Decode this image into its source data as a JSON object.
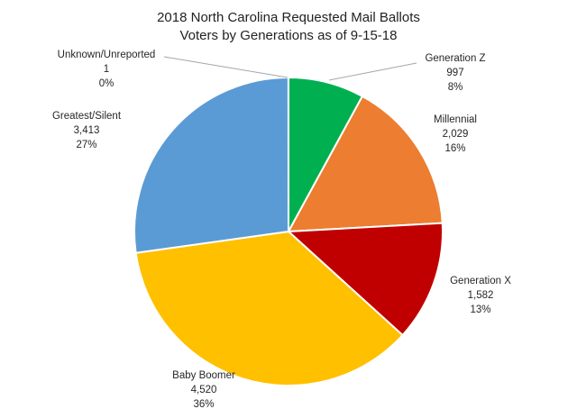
{
  "chart_data": {
    "type": "pie",
    "title": "2018 North Carolina Requested Mail Ballots",
    "subtitle": "Voters by Generations as of 9-15-18",
    "start_angle_deg": 0,
    "direction": "clockwise",
    "slices": [
      {
        "name": "Generation Z",
        "value": 997,
        "value_text": "997",
        "percent": "8%",
        "color": "#00b050"
      },
      {
        "name": "Millennial",
        "value": 2029,
        "value_text": "2,029",
        "percent": "16%",
        "color": "#ed7d31"
      },
      {
        "name": "Generation X",
        "value": 1582,
        "value_text": "1,582",
        "percent": "13%",
        "color": "#c00000"
      },
      {
        "name": "Baby Boomer",
        "value": 4520,
        "value_text": "4,520",
        "percent": "36%",
        "color": "#ffc000"
      },
      {
        "name": "Greatest/Silent",
        "value": 3413,
        "value_text": "3,413",
        "percent": "27%",
        "color": "#5b9bd5"
      },
      {
        "name": "Unknown/Unreported",
        "value": 1,
        "value_text": "1",
        "percent": "0%",
        "color": "#a5a5a5"
      }
    ]
  }
}
